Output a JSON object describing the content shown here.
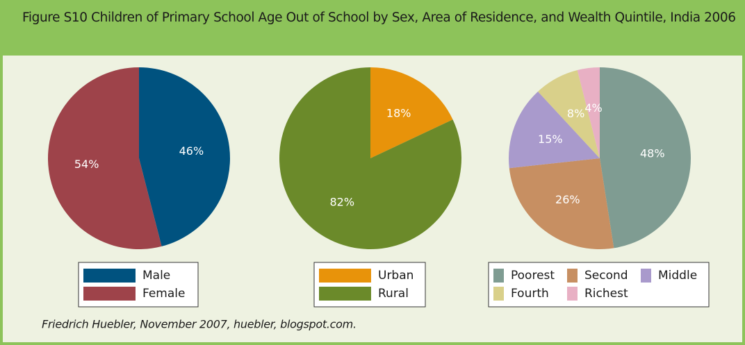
{
  "title": "Figure S10 Children of Primary School Age Out of School by Sex, Area of Residence, and Wealth Quintile, India 2006",
  "source": "Friedrich Huebler, November 2007, huebler, blogspot.com.",
  "chart_data": [
    {
      "type": "pie",
      "categories": [
        "Male",
        "Female"
      ],
      "values": [
        46,
        54
      ],
      "value_labels": [
        "46%",
        "54%"
      ],
      "colors": [
        "#00527f",
        "#9e434a"
      ]
    },
    {
      "type": "pie",
      "categories": [
        "Urban",
        "Rural"
      ],
      "values": [
        18,
        82
      ],
      "value_labels": [
        "18%",
        "82%"
      ],
      "colors": [
        "#e8930a",
        "#6b8a2a"
      ]
    },
    {
      "type": "pie",
      "categories": [
        "Poorest",
        "Second",
        "Middle",
        "Fourth",
        "Richest"
      ],
      "values": [
        48,
        26,
        15,
        8,
        4
      ],
      "value_labels": [
        "48%",
        "26%",
        "15%",
        "8%",
        "4%"
      ],
      "colors": [
        "#7f9c92",
        "#c78f62",
        "#a99acc",
        "#d9d08a",
        "#e8b0c4"
      ]
    }
  ]
}
